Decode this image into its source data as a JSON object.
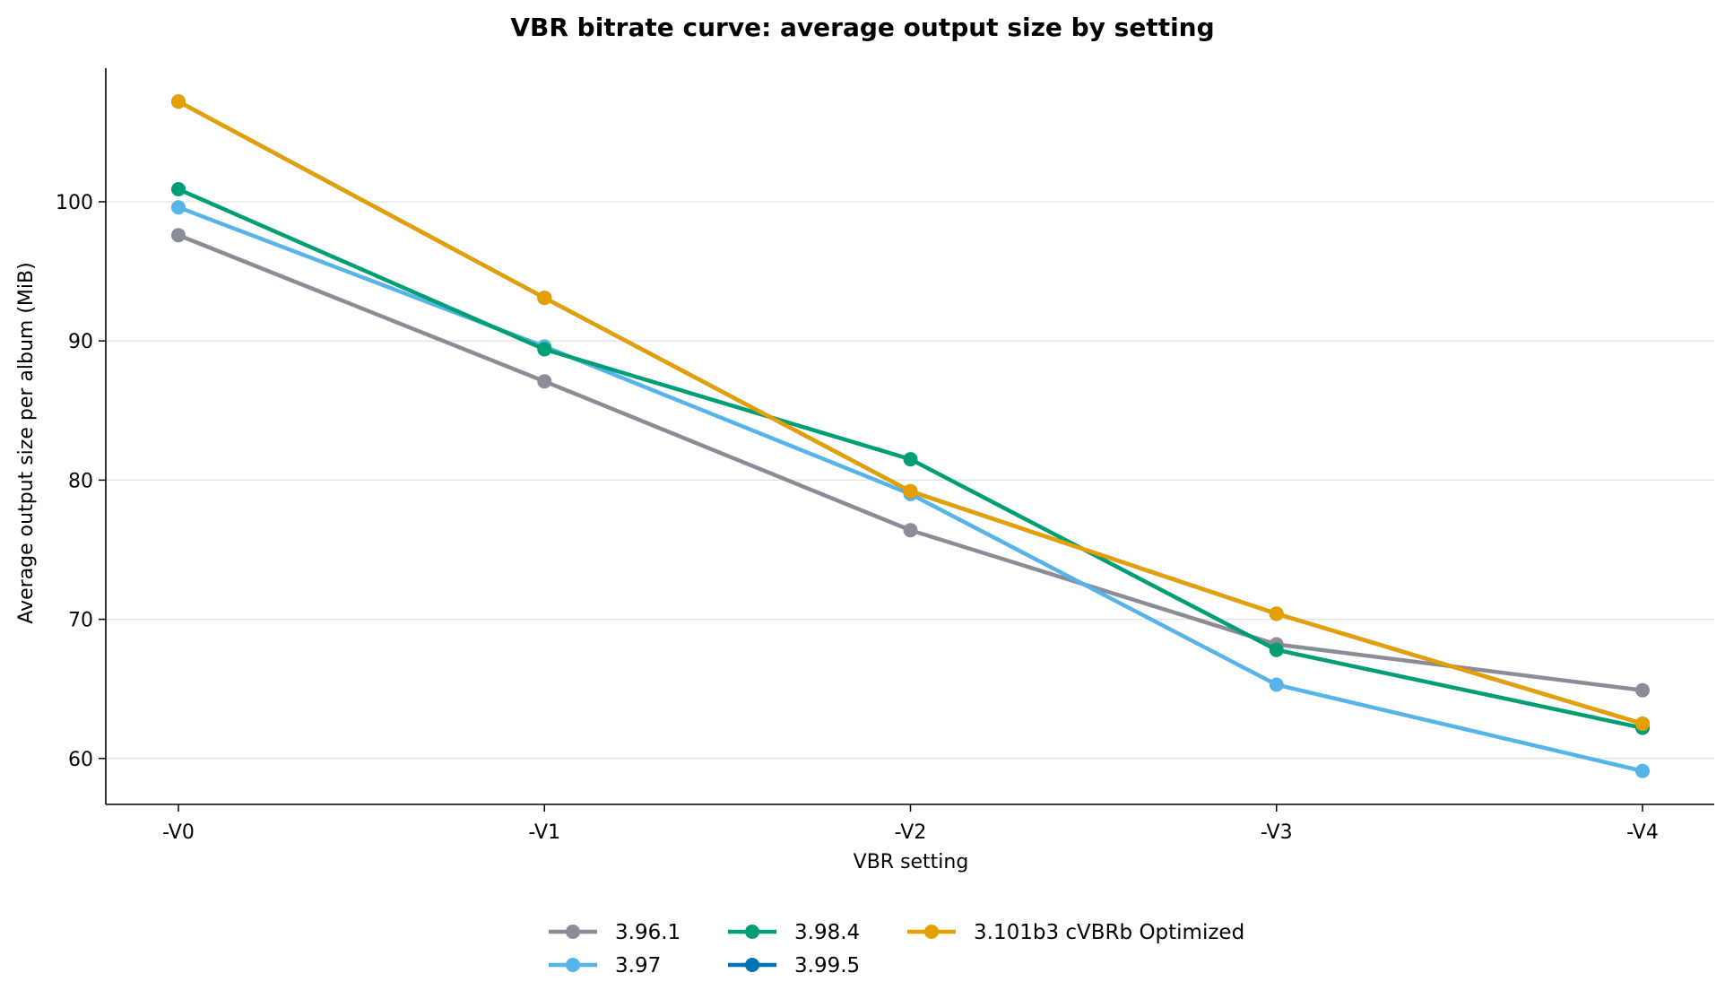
{
  "chart_data": {
    "type": "line",
    "title": "VBR bitrate curve: average output size by setting",
    "xlabel": "VBR setting",
    "ylabel": "Average output size per album (MiB)",
    "categories": [
      "-V0",
      "-V1",
      "-V2",
      "-V3",
      "-V4"
    ],
    "ylim": [
      56.7,
      109.6
    ],
    "yticks": [
      "60",
      "70",
      "80",
      "90",
      "100"
    ],
    "grid": "horizontal",
    "legend_position": "bottom-center",
    "series": [
      {
        "name": "3.96.1",
        "color": "#8a8d96",
        "values": [
          97.6,
          87.1,
          76.4,
          68.2,
          64.9
        ]
      },
      {
        "name": "3.97",
        "color": "#56b4e9",
        "values": [
          99.6,
          89.6,
          79.0,
          65.3,
          59.1
        ]
      },
      {
        "name": "3.98.4",
        "color": "#009e73",
        "values": [
          100.9,
          89.4,
          81.5,
          67.8,
          62.2
        ]
      },
      {
        "name": "3.99.5",
        "color": "#0072b2",
        "values": [
          107.2,
          93.1,
          79.2,
          70.4,
          62.5
        ]
      },
      {
        "name": "3.101b3 cVBRb Optimized",
        "color": "#e69f00",
        "values": [
          107.2,
          93.1,
          79.2,
          70.4,
          62.5
        ]
      }
    ]
  }
}
